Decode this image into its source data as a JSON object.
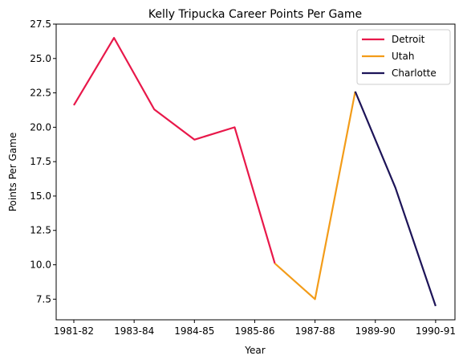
{
  "chart_data": {
    "type": "line",
    "title": "Kelly Tripucka Career Points Per Game",
    "xlabel": "Year",
    "ylabel": "Points Per Game",
    "x_ticks": [
      "1981-82",
      "1983-84",
      "1984-85",
      "1985-86",
      "1987-88",
      "1989-90",
      "1990-91"
    ],
    "ylim": [
      6.0,
      27.5
    ],
    "y_ticks": [
      "7.5",
      "10.0",
      "12.5",
      "15.0",
      "17.5",
      "20.0",
      "22.5",
      "25.0",
      "27.5"
    ],
    "grid": false,
    "legend_position": "top-right",
    "series": [
      {
        "name": "Detroit",
        "color": "#e8184a",
        "points": [
          [
            0,
            21.6
          ],
          [
            1,
            26.5
          ],
          [
            2,
            21.3
          ],
          [
            3,
            19.1
          ],
          [
            4,
            20.0
          ],
          [
            5,
            10.1
          ]
        ]
      },
      {
        "name": "Utah",
        "color": "#f39c19",
        "points": [
          [
            5,
            10.1
          ],
          [
            6,
            7.5
          ],
          [
            7,
            22.6
          ]
        ]
      },
      {
        "name": "Charlotte",
        "color": "#1d1458",
        "points": [
          [
            7,
            22.6
          ],
          [
            8,
            15.6
          ],
          [
            9,
            7.0
          ]
        ]
      }
    ]
  }
}
